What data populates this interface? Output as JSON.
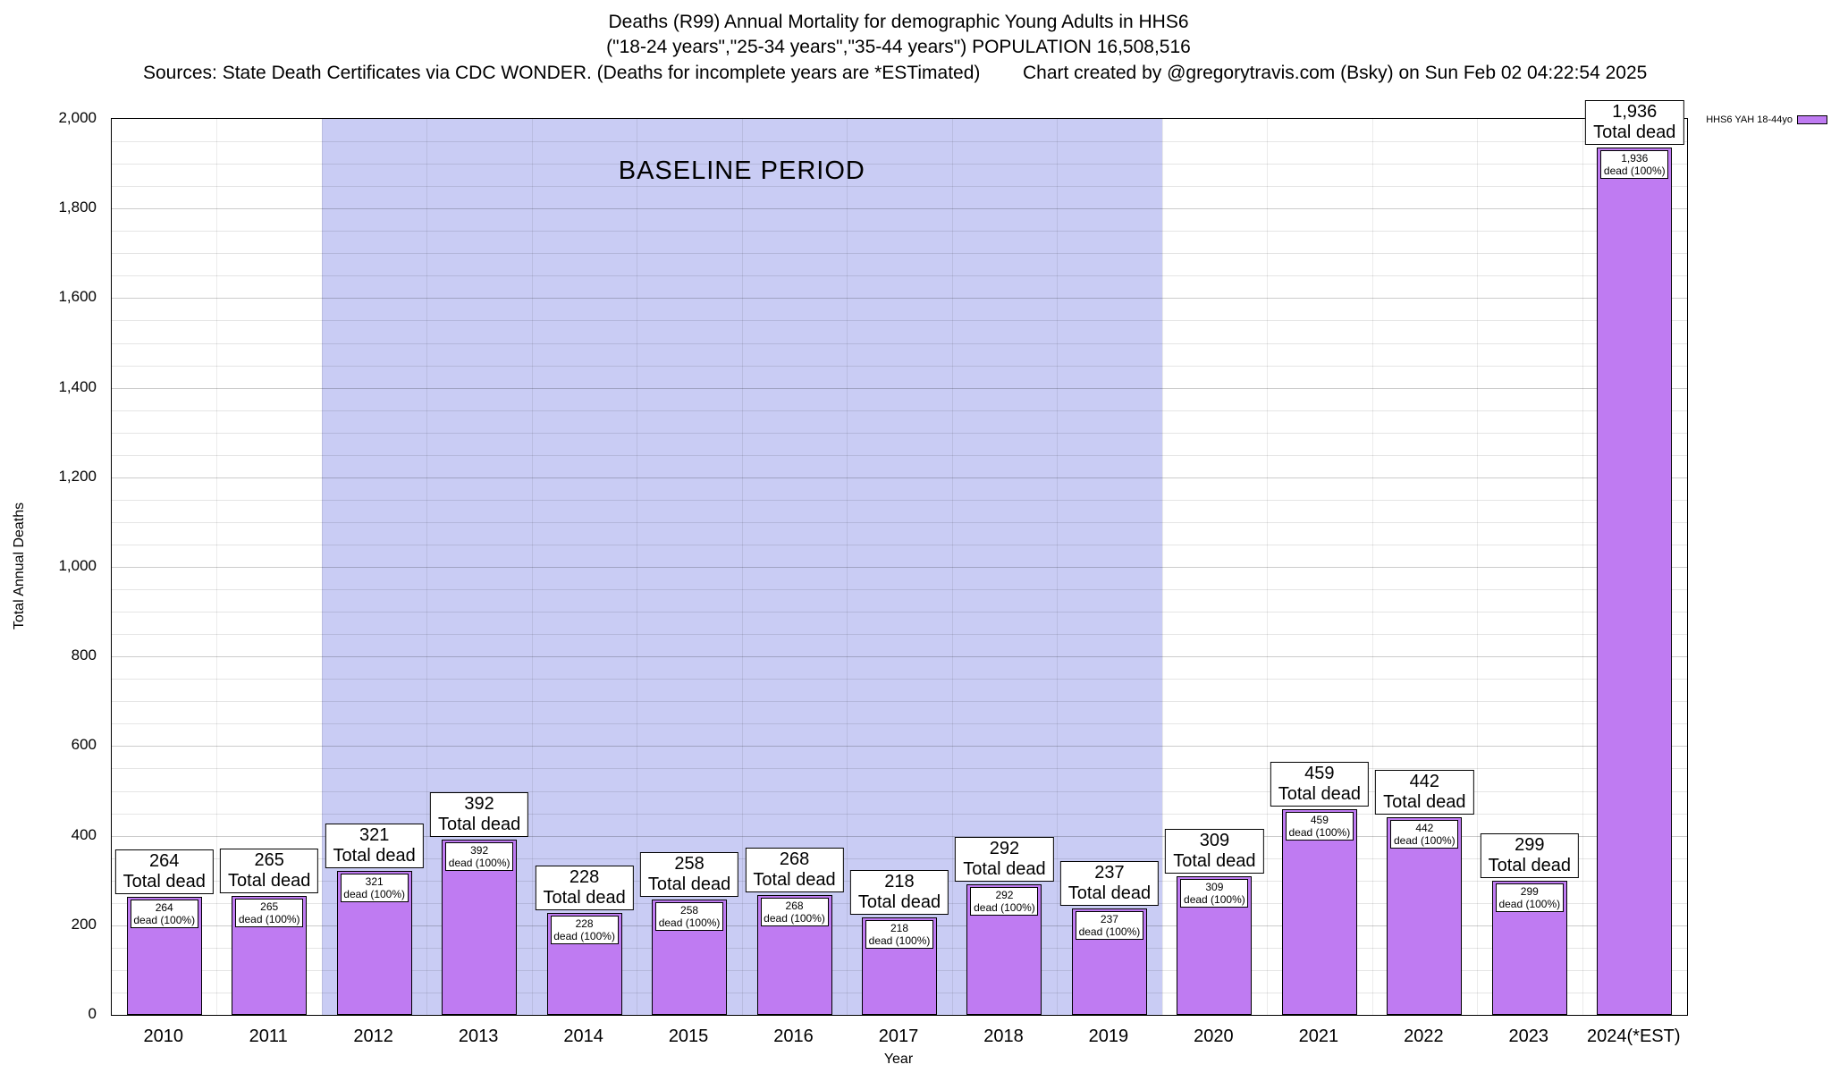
{
  "title": {
    "line1": "Deaths (R99) Annual Mortality for demographic Young Adults in HHS6",
    "line2": "(\"18-24 years\",\"25-34 years\",\"35-44 years\") POPULATION 16,508,516",
    "sources": "Sources: State Death Certificates via CDC WONDER. (Deaths for incomplete years are *ESTimated)",
    "credit": "Chart created by @gregorytravis.com (Bsky) on Sun Feb 02 04:22:54 2025"
  },
  "legend": {
    "label": "HHS6 YAH 18-44yo",
    "swatch_color": "#BF7BF2"
  },
  "baseline": {
    "label": "BASELINE PERIOD",
    "start_category": "2012",
    "end_category": "2019",
    "color": "#C9CCF4"
  },
  "axes": {
    "ylabel": "Total Annual Deaths",
    "xlabel": "Year",
    "ymin": 0,
    "ymax": 2000,
    "ytick_step": 200,
    "minor_step": 50
  },
  "chart_data": {
    "type": "bar",
    "title": "Deaths (R99) Annual Mortality for demographic Young Adults in HHS6",
    "categories": [
      "2010",
      "2011",
      "2012",
      "2013",
      "2014",
      "2015",
      "2016",
      "2017",
      "2018",
      "2019",
      "2020",
      "2021",
      "2022",
      "2023",
      "2024(*EST)"
    ],
    "values": [
      264,
      265,
      321,
      392,
      228,
      258,
      268,
      218,
      292,
      237,
      309,
      459,
      442,
      299,
      1936
    ],
    "value_labels": [
      "264",
      "265",
      "321",
      "392",
      "228",
      "258",
      "268",
      "218",
      "292",
      "237",
      "309",
      "459",
      "442",
      "299",
      "1,936"
    ],
    "series_name": "HHS6 YAH 18-44yo",
    "bar_color": "#BF7BF2",
    "bar_labels": {
      "top_suffix": "Total dead",
      "inner_suffix": "dead (100%)"
    },
    "xlabel": "Year",
    "ylabel": "Total Annual Deaths",
    "ylim": [
      0,
      2000
    ],
    "ytick_labels": [
      "0",
      "200",
      "400",
      "600",
      "800",
      "1,000",
      "1,200",
      "1,400",
      "1,600",
      "1,800",
      "2,000"
    ],
    "grid": true,
    "legend_position": "top-right",
    "baseline_shaded_categories": [
      "2012",
      "2013",
      "2014",
      "2015",
      "2016",
      "2017",
      "2018",
      "2019"
    ]
  }
}
